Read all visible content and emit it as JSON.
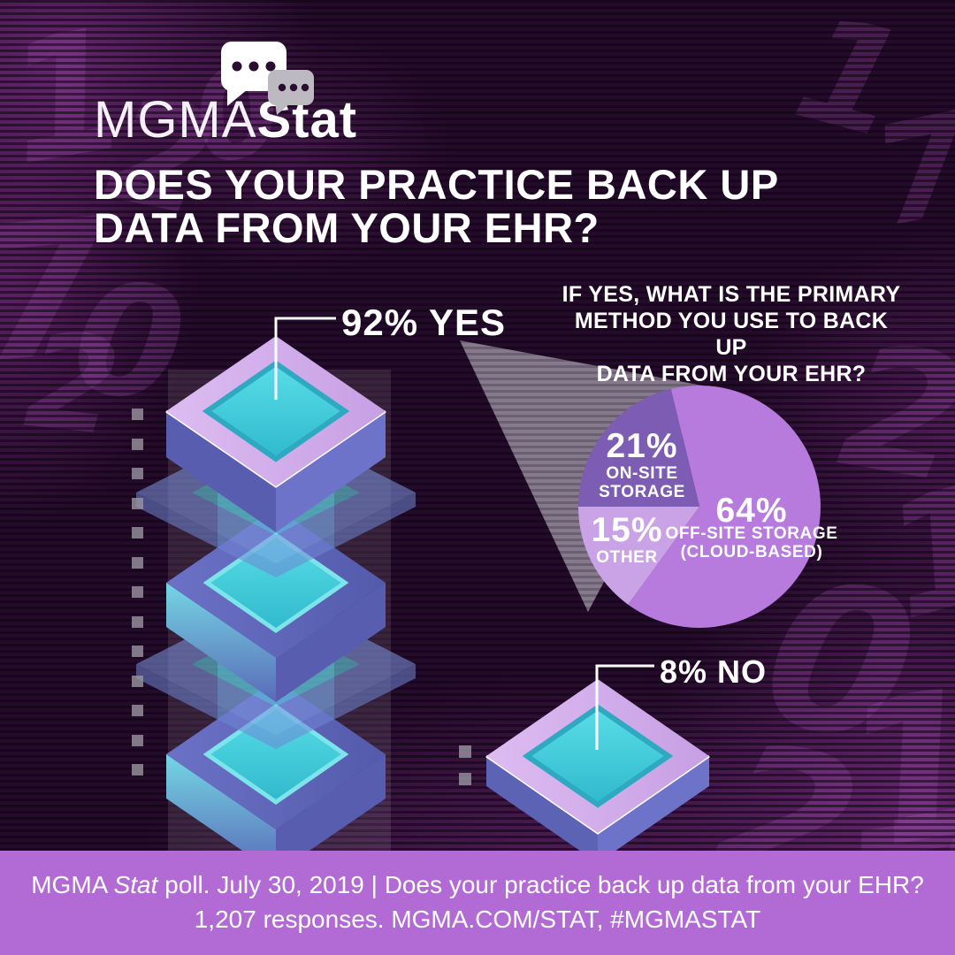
{
  "logo": {
    "brand": "MGMA",
    "product": "Stat"
  },
  "title": {
    "line1": "DOES YOUR PRACTICE BACK UP",
    "line2": "DATA FROM YOUR EHR?"
  },
  "question": {
    "line1": "IF YES, WHAT IS THE PRIMARY",
    "line2": "METHOD YOU USE TO BACK UP",
    "line3": "DATA FROM YOUR EHR?"
  },
  "labels": {
    "yes": "92% YES",
    "no": "8% NO"
  },
  "pie_labels": {
    "onsite": {
      "pct": "21%",
      "l1": "ON-SITE",
      "l2": "STORAGE"
    },
    "other": {
      "pct": "15%",
      "l1": "OTHER"
    },
    "offsite": {
      "pct": "64%",
      "l1": "OFF-SITE STORAGE",
      "l2": "(CLOUD-BASED)"
    }
  },
  "footer": {
    "p1": "MGMA ",
    "stat": "Stat",
    "p2": " poll. July 30, 2019 | Does your practice back up data from your EHR?",
    "line2": "1,207 responses. MGMA.COM/STAT, #MGMASTAT"
  },
  "chart_data": [
    {
      "type": "pie",
      "title": "IF YES, WHAT IS THE PRIMARY METHOD YOU USE TO BACK UP DATA FROM YOUR EHR?",
      "labels": [
        "OFF-SITE STORAGE (CLOUD-BASED)",
        "ON-SITE STORAGE",
        "OTHER"
      ],
      "values": [
        64,
        21,
        15
      ],
      "unit": "%",
      "legend_position": "in-slice",
      "slice_colors": [
        "#b77bdd",
        "#7d5db3",
        "#caa3e7"
      ]
    },
    {
      "type": "pictorial-bar",
      "title": "DOES YOUR PRACTICE BACK UP DATA FROM YOUR EHR?",
      "categories": [
        "YES",
        "NO"
      ],
      "values": [
        92,
        8
      ],
      "unit": "%",
      "note": "YES shown as tall stack of 5 isometric trays; NO shown as single flat tray"
    }
  ],
  "background": {
    "digits": [
      "1",
      "2",
      "0",
      "7"
    ]
  },
  "colors": {
    "background": "#250b2b",
    "footer_band": "#b26ad4",
    "pie_offsite": "#b77bdd",
    "pie_onsite": "#7d5db3",
    "pie_other": "#caa3e7",
    "tray_lavender": "#cfa9ea",
    "tray_teal": "#49cfdc",
    "tray_side_blue": "#5a5fb2",
    "text": "#ffffff"
  }
}
